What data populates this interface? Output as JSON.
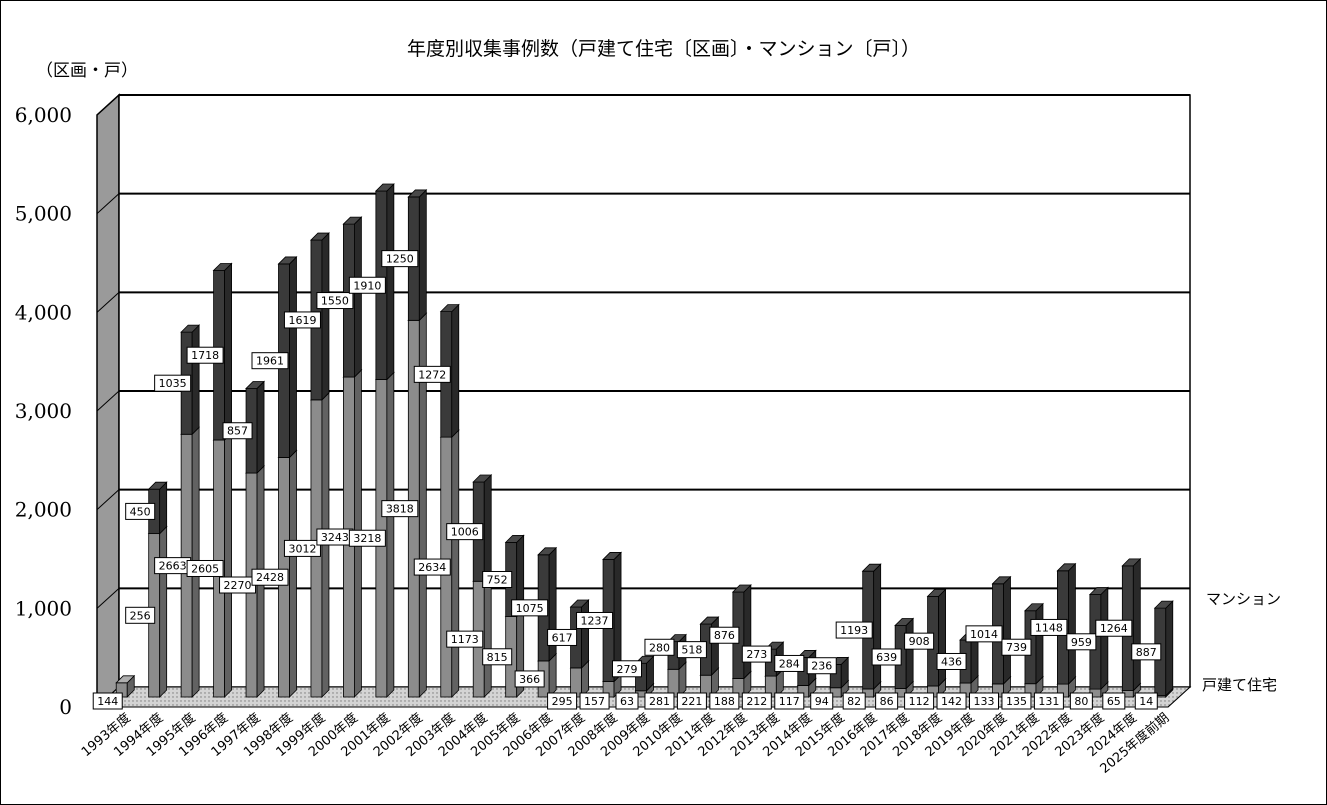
{
  "chart_data": {
    "type": "bar",
    "stacked": true,
    "three_d": true,
    "title": "年度別収集事例数（戸建て住宅〔区画〕・マンション〔戸〕）",
    "ylabel": "（区画・戸）",
    "xlabel": "",
    "ylim": [
      0,
      6000
    ],
    "yticks": [
      "0",
      "1,000",
      "2,000",
      "3,000",
      "4,000",
      "5,000",
      "6,000"
    ],
    "grid": true,
    "legend": "right",
    "categories": [
      "1993年度",
      "1994年度",
      "1995年度",
      "1996年度",
      "1997年度",
      "1998年度",
      "1999年度",
      "2000年度",
      "2001年度",
      "2002年度",
      "2003年度",
      "2004年度",
      "2005年度",
      "2006年度",
      "2007年度",
      "2008年度",
      "2009年度",
      "2010年度",
      "2011年度",
      "2012年度",
      "2013年度",
      "2014年度",
      "2015年度",
      "2016年度",
      "2017年度",
      "2018年度",
      "2019年度",
      "2020年度",
      "2021年度",
      "2022年度",
      "2023年度",
      "2024年度",
      "2025年度前期"
    ],
    "series": [
      {
        "name": "戸建て住宅",
        "color": "#8c8c8c",
        "values": [
          144,
          1656,
          2663,
          2605,
          2270,
          2428,
          3012,
          3243,
          3218,
          3818,
          2634,
          1173,
          815,
          366,
          295,
          157,
          63,
          281,
          221,
          188,
          212,
          117,
          94,
          82,
          86,
          112,
          142,
          133,
          135,
          131,
          80,
          65,
          14
        ]
      },
      {
        "name": "マンション",
        "color": "#3a3a3a",
        "values": [
          0,
          450,
          1035,
          1718,
          857,
          1961,
          1619,
          1550,
          1910,
          1250,
          1272,
          1006,
          752,
          1075,
          617,
          1237,
          279,
          280,
          518,
          876,
          273,
          284,
          236,
          1193,
          639,
          908,
          436,
          1014,
          739,
          1148,
          959,
          1264,
          887
        ]
      }
    ],
    "data_labels_series2": [
      "",
      "450",
      "1035",
      "1718",
      "857",
      "1961",
      "1619",
      "1550",
      "1910",
      "1250",
      "1272",
      "1006",
      "752",
      "1075",
      "617",
      "1237",
      "279",
      "280",
      "518",
      "876",
      "273",
      "284",
      "236",
      "1193",
      "639",
      "908",
      "436",
      "1014",
      "739",
      "1148",
      "959",
      "1264",
      "887"
    ],
    "data_labels_series1": [
      "144",
      "256",
      "2663",
      "2605",
      "2270",
      "2428",
      "3012",
      "3243",
      "3218",
      "3818",
      "2634",
      "1173",
      "815",
      "366",
      "295",
      "157",
      "63",
      "281",
      "221",
      "188",
      "212",
      "117",
      "94",
      "82",
      "86",
      "112",
      "142",
      "133",
      "135",
      "131",
      "80",
      "65",
      "14"
    ],
    "data_labels_series1_display_override": {
      "1": "1656"
    }
  }
}
